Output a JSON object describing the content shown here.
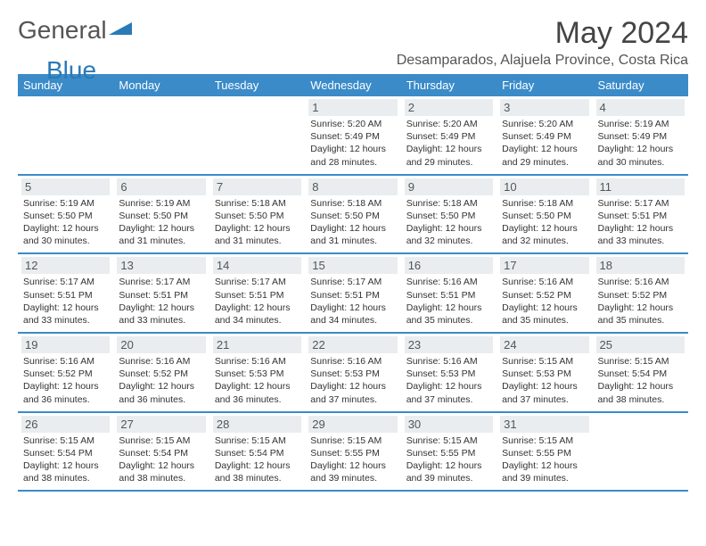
{
  "logo": {
    "text1": "General",
    "text2": "Blue",
    "color1": "#555555",
    "color2": "#2a7ab8"
  },
  "title": "May 2024",
  "location": "Desamparados, Alajuela Province, Costa Rica",
  "header_bg": "#3b8bc9",
  "daynum_bg": "#e9edef",
  "weekdays": [
    "Sunday",
    "Monday",
    "Tuesday",
    "Wednesday",
    "Thursday",
    "Friday",
    "Saturday"
  ],
  "weeks": [
    [
      {
        "n": "",
        "sr": "",
        "ss": "",
        "dl": ""
      },
      {
        "n": "",
        "sr": "",
        "ss": "",
        "dl": ""
      },
      {
        "n": "",
        "sr": "",
        "ss": "",
        "dl": ""
      },
      {
        "n": "1",
        "sr": "5:20 AM",
        "ss": "5:49 PM",
        "dl": "12 hours and 28 minutes."
      },
      {
        "n": "2",
        "sr": "5:20 AM",
        "ss": "5:49 PM",
        "dl": "12 hours and 29 minutes."
      },
      {
        "n": "3",
        "sr": "5:20 AM",
        "ss": "5:49 PM",
        "dl": "12 hours and 29 minutes."
      },
      {
        "n": "4",
        "sr": "5:19 AM",
        "ss": "5:49 PM",
        "dl": "12 hours and 30 minutes."
      }
    ],
    [
      {
        "n": "5",
        "sr": "5:19 AM",
        "ss": "5:50 PM",
        "dl": "12 hours and 30 minutes."
      },
      {
        "n": "6",
        "sr": "5:19 AM",
        "ss": "5:50 PM",
        "dl": "12 hours and 31 minutes."
      },
      {
        "n": "7",
        "sr": "5:18 AM",
        "ss": "5:50 PM",
        "dl": "12 hours and 31 minutes."
      },
      {
        "n": "8",
        "sr": "5:18 AM",
        "ss": "5:50 PM",
        "dl": "12 hours and 31 minutes."
      },
      {
        "n": "9",
        "sr": "5:18 AM",
        "ss": "5:50 PM",
        "dl": "12 hours and 32 minutes."
      },
      {
        "n": "10",
        "sr": "5:18 AM",
        "ss": "5:50 PM",
        "dl": "12 hours and 32 minutes."
      },
      {
        "n": "11",
        "sr": "5:17 AM",
        "ss": "5:51 PM",
        "dl": "12 hours and 33 minutes."
      }
    ],
    [
      {
        "n": "12",
        "sr": "5:17 AM",
        "ss": "5:51 PM",
        "dl": "12 hours and 33 minutes."
      },
      {
        "n": "13",
        "sr": "5:17 AM",
        "ss": "5:51 PM",
        "dl": "12 hours and 33 minutes."
      },
      {
        "n": "14",
        "sr": "5:17 AM",
        "ss": "5:51 PM",
        "dl": "12 hours and 34 minutes."
      },
      {
        "n": "15",
        "sr": "5:17 AM",
        "ss": "5:51 PM",
        "dl": "12 hours and 34 minutes."
      },
      {
        "n": "16",
        "sr": "5:16 AM",
        "ss": "5:51 PM",
        "dl": "12 hours and 35 minutes."
      },
      {
        "n": "17",
        "sr": "5:16 AM",
        "ss": "5:52 PM",
        "dl": "12 hours and 35 minutes."
      },
      {
        "n": "18",
        "sr": "5:16 AM",
        "ss": "5:52 PM",
        "dl": "12 hours and 35 minutes."
      }
    ],
    [
      {
        "n": "19",
        "sr": "5:16 AM",
        "ss": "5:52 PM",
        "dl": "12 hours and 36 minutes."
      },
      {
        "n": "20",
        "sr": "5:16 AM",
        "ss": "5:52 PM",
        "dl": "12 hours and 36 minutes."
      },
      {
        "n": "21",
        "sr": "5:16 AM",
        "ss": "5:53 PM",
        "dl": "12 hours and 36 minutes."
      },
      {
        "n": "22",
        "sr": "5:16 AM",
        "ss": "5:53 PM",
        "dl": "12 hours and 37 minutes."
      },
      {
        "n": "23",
        "sr": "5:16 AM",
        "ss": "5:53 PM",
        "dl": "12 hours and 37 minutes."
      },
      {
        "n": "24",
        "sr": "5:15 AM",
        "ss": "5:53 PM",
        "dl": "12 hours and 37 minutes."
      },
      {
        "n": "25",
        "sr": "5:15 AM",
        "ss": "5:54 PM",
        "dl": "12 hours and 38 minutes."
      }
    ],
    [
      {
        "n": "26",
        "sr": "5:15 AM",
        "ss": "5:54 PM",
        "dl": "12 hours and 38 minutes."
      },
      {
        "n": "27",
        "sr": "5:15 AM",
        "ss": "5:54 PM",
        "dl": "12 hours and 38 minutes."
      },
      {
        "n": "28",
        "sr": "5:15 AM",
        "ss": "5:54 PM",
        "dl": "12 hours and 38 minutes."
      },
      {
        "n": "29",
        "sr": "5:15 AM",
        "ss": "5:55 PM",
        "dl": "12 hours and 39 minutes."
      },
      {
        "n": "30",
        "sr": "5:15 AM",
        "ss": "5:55 PM",
        "dl": "12 hours and 39 minutes."
      },
      {
        "n": "31",
        "sr": "5:15 AM",
        "ss": "5:55 PM",
        "dl": "12 hours and 39 minutes."
      },
      {
        "n": "",
        "sr": "",
        "ss": "",
        "dl": ""
      }
    ]
  ],
  "labels": {
    "sunrise": "Sunrise:",
    "sunset": "Sunset:",
    "daylight": "Daylight:"
  }
}
